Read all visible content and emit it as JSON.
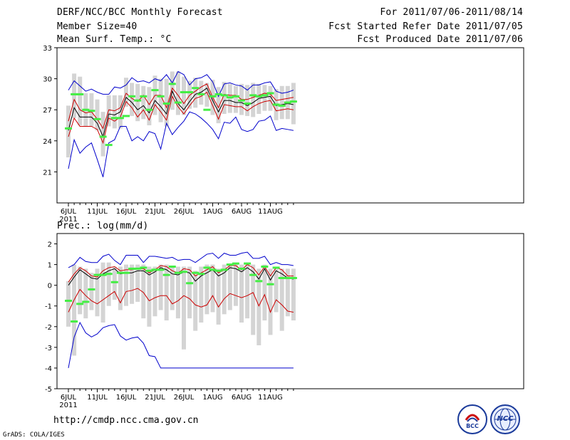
{
  "header": {
    "title": "DERF/NCC/BCC Monthly Forecast",
    "member_size": "Member Size=40",
    "variable": "Mean Surf. Temp.: °C",
    "period": "For 2011/07/06-2011/08/14",
    "started": "Fcst Started Refer Date 2011/07/05",
    "produced": "Fcst Produced Date 2011/07/06"
  },
  "footer": {
    "url": "http://cmdp.ncc.cma.gov.cn",
    "credit": "GrADS: COLA/IGES",
    "logo_bcc": "BCC",
    "logo_ncc": "NCC"
  },
  "colors": {
    "box": "#d4d4d4",
    "median": "#44ee44",
    "mean": "#000000",
    "band": "#cc0000",
    "range": "#0000cc"
  },
  "chart_data": [
    {
      "type": "box_ensemble",
      "title": "",
      "ylabel": "",
      "ylim": [
        18,
        33
      ],
      "yticks": [
        21,
        24,
        27,
        30,
        33
      ],
      "xticklabels": [
        "6JUL",
        "11JUL",
        "16JUL",
        "21JUL",
        "26JUL",
        "1AUG",
        "6AUG",
        "11AUG"
      ],
      "year_label": "2011",
      "days": 40,
      "series": [
        {
          "name": "max",
          "values": [
            28.9,
            29.8,
            29.3,
            28.8,
            29.0,
            28.7,
            28.5,
            28.5,
            29.2,
            29.1,
            29.4,
            30.1,
            29.7,
            29.8,
            29.6,
            30.0,
            29.8,
            30.4,
            29.6,
            30.7,
            30.4,
            29.4,
            30.0,
            30.1,
            30.4,
            29.7,
            28.3,
            29.5,
            29.6,
            29.4,
            29.3,
            28.9,
            29.4,
            29.4,
            29.6,
            29.7,
            28.8,
            28.6,
            28.7,
            28.9
          ]
        },
        {
          "name": "upper",
          "values": [
            25.9,
            28.0,
            27.0,
            26.7,
            26.8,
            26.1,
            25.2,
            27.0,
            26.9,
            27.2,
            28.6,
            28.1,
            27.8,
            28.4,
            27.5,
            28.4,
            28.4,
            27.2,
            29.1,
            28.4,
            27.6,
            28.4,
            28.8,
            29.2,
            29.5,
            28.2,
            27.2,
            28.5,
            28.4,
            28.4,
            28.0,
            28.0,
            28.2,
            28.4,
            28.6,
            28.5,
            27.9,
            28.0,
            28.1,
            28.2
          ]
        },
        {
          "name": "mean",
          "values": [
            25.0,
            27.2,
            26.3,
            26.3,
            26.3,
            25.7,
            24.4,
            26.6,
            26.5,
            26.8,
            28.2,
            27.7,
            27.0,
            27.4,
            26.7,
            27.9,
            27.3,
            26.6,
            28.8,
            27.6,
            27.0,
            27.8,
            28.5,
            28.7,
            29.1,
            27.9,
            26.8,
            27.9,
            27.9,
            27.7,
            27.7,
            27.4,
            27.7,
            28.1,
            28.2,
            28.3,
            27.4,
            27.5,
            27.6,
            27.5
          ]
        },
        {
          "name": "lower",
          "values": [
            24.4,
            26.2,
            25.4,
            25.4,
            25.4,
            25.1,
            23.8,
            26.2,
            25.9,
            26.3,
            27.8,
            27.2,
            26.3,
            27.0,
            26.0,
            27.5,
            26.8,
            26.0,
            28.3,
            27.3,
            26.6,
            27.4,
            28.1,
            28.3,
            28.7,
            27.4,
            26.1,
            27.5,
            27.4,
            27.3,
            27.3,
            26.9,
            27.3,
            27.6,
            27.8,
            27.9,
            26.9,
            27.0,
            27.1,
            27.0
          ]
        },
        {
          "name": "min",
          "values": [
            21.3,
            24.1,
            22.8,
            23.4,
            23.8,
            22.2,
            20.5,
            23.8,
            24.1,
            25.4,
            25.4,
            24.0,
            24.4,
            24.0,
            24.9,
            24.7,
            23.2,
            25.7,
            24.6,
            25.3,
            25.9,
            26.8,
            26.6,
            26.2,
            25.7,
            25.1,
            24.2,
            25.8,
            25.7,
            26.3,
            25.1,
            24.9,
            25.1,
            25.9,
            26.0,
            26.4,
            25.0,
            25.2,
            25.1,
            25.0
          ]
        },
        {
          "name": "median",
          "values": [
            25.2,
            28.5,
            28.5,
            27.0,
            26.9,
            26.1,
            24.4,
            23.6,
            26.2,
            26.2,
            26.4,
            28.3,
            27.9,
            28.3,
            27.0,
            28.9,
            28.3,
            27.6,
            29.5,
            27.7,
            28.7,
            28.7,
            29.1,
            28.5,
            27.0,
            28.3,
            28.5,
            28.4,
            28.2,
            28.3,
            27.9,
            27.6,
            28.4,
            28.3,
            28.4,
            28.6,
            27.5,
            27.4,
            27.7,
            27.8
          ]
        },
        {
          "name": "box_top",
          "values": [
            27.4,
            30.5,
            30.2,
            28.6,
            28.6,
            28.0,
            26.8,
            28.4,
            28.4,
            28.4,
            30.1,
            29.6,
            29.5,
            29.3,
            29.2,
            30.3,
            30.0,
            30.0,
            30.7,
            30.7,
            30.2,
            29.8,
            30.1,
            29.8,
            29.6,
            29.9,
            29.2,
            29.7,
            29.5,
            29.3,
            29.5,
            29.4,
            29.6,
            29.5,
            29.4,
            29.3,
            29.0,
            29.3,
            29.3,
            29.6
          ]
        },
        {
          "name": "box_bottom",
          "values": [
            22.4,
            26.2,
            25.5,
            25.4,
            25.4,
            25.0,
            22.5,
            25.4,
            25.2,
            25.2,
            27.3,
            26.4,
            25.9,
            26.1,
            25.5,
            26.5,
            25.8,
            25.4,
            27.0,
            26.5,
            26.5,
            27.1,
            27.2,
            27.5,
            27.3,
            26.5,
            25.7,
            26.6,
            26.7,
            26.7,
            26.5,
            26.4,
            26.3,
            26.6,
            26.9,
            26.9,
            26.0,
            26.1,
            26.1,
            25.6
          ]
        }
      ]
    },
    {
      "type": "box_ensemble",
      "title": "Prec.: log(mm/d)",
      "ylabel": "",
      "ylim": [
        -5,
        2.5
      ],
      "yticks": [
        -5,
        -4,
        -3,
        -2,
        -1,
        0,
        1,
        2
      ],
      "xticklabels": [
        "6JUL",
        "11JUL",
        "16JUL",
        "21JUL",
        "26JUL",
        "1AUG",
        "6AUG",
        "11AUG"
      ],
      "year_label": "2011",
      "days": 40,
      "series": [
        {
          "name": "max",
          "values": [
            0.85,
            1.0,
            1.35,
            1.15,
            1.1,
            1.1,
            1.4,
            1.5,
            1.2,
            1.0,
            1.45,
            1.45,
            1.45,
            1.1,
            1.4,
            1.4,
            1.35,
            1.3,
            1.35,
            1.2,
            1.25,
            1.25,
            1.1,
            1.3,
            1.5,
            1.55,
            1.3,
            1.55,
            1.45,
            1.45,
            1.55,
            1.6,
            1.3,
            1.3,
            1.4,
            1.0,
            1.1,
            1.0,
            1.0,
            0.95
          ]
        },
        {
          "name": "upper",
          "values": [
            0.15,
            0.55,
            0.85,
            0.7,
            0.45,
            0.4,
            0.7,
            0.85,
            0.9,
            0.7,
            0.75,
            0.75,
            0.8,
            0.8,
            0.6,
            0.75,
            0.95,
            0.9,
            0.7,
            0.6,
            0.8,
            0.75,
            0.45,
            0.6,
            0.75,
            0.9,
            0.6,
            0.75,
            0.95,
            0.95,
            0.75,
            1.0,
            0.85,
            0.5,
            0.9,
            0.45,
            0.85,
            0.75,
            0.45,
            0.45
          ]
        },
        {
          "name": "mean",
          "values": [
            0.0,
            0.4,
            0.75,
            0.55,
            0.35,
            0.3,
            0.55,
            0.7,
            0.8,
            0.55,
            0.6,
            0.6,
            0.7,
            0.7,
            0.5,
            0.65,
            0.85,
            0.75,
            0.55,
            0.5,
            0.65,
            0.6,
            0.2,
            0.45,
            0.6,
            0.75,
            0.45,
            0.6,
            0.85,
            0.8,
            0.65,
            0.85,
            0.65,
            0.3,
            0.8,
            0.25,
            0.7,
            0.55,
            0.35,
            0.3
          ]
        },
        {
          "name": "lower",
          "values": [
            -1.3,
            -0.7,
            -0.2,
            -0.5,
            -0.75,
            -0.9,
            -0.7,
            -0.5,
            -0.3,
            -0.85,
            -0.3,
            -0.25,
            -0.15,
            -0.35,
            -0.75,
            -0.6,
            -0.5,
            -0.5,
            -0.9,
            -0.75,
            -0.5,
            -0.65,
            -0.95,
            -1.05,
            -0.95,
            -0.5,
            -1.05,
            -0.65,
            -0.4,
            -0.5,
            -0.6,
            -0.5,
            -0.35,
            -1.0,
            -0.45,
            -1.3,
            -0.7,
            -0.95,
            -1.25,
            -1.3
          ]
        },
        {
          "name": "min",
          "values": [
            -4.0,
            -2.5,
            -1.8,
            -2.3,
            -2.5,
            -2.35,
            -2.05,
            -1.95,
            -1.9,
            -2.45,
            -2.65,
            -2.55,
            -2.5,
            -2.8,
            -3.4,
            -3.45,
            -4.0,
            -4.0,
            -4.0,
            -4.0,
            -4.0,
            -4.0,
            -4.0,
            -4.0,
            -4.0,
            -4.0,
            -4.0,
            -4.0,
            -4.0,
            -4.0,
            -4.0,
            -4.0,
            -4.0,
            -4.0,
            -4.0,
            -4.0,
            -4.0,
            -4.0,
            -4.0,
            -4.0
          ]
        },
        {
          "name": "median",
          "values": [
            -0.75,
            -1.75,
            -0.9,
            -0.8,
            -0.2,
            0.5,
            0.5,
            0.55,
            0.15,
            0.6,
            0.6,
            0.8,
            0.8,
            0.85,
            0.7,
            0.75,
            0.75,
            0.5,
            0.9,
            0.6,
            0.65,
            0.1,
            0.6,
            0.55,
            0.85,
            0.75,
            0.7,
            0.75,
            1.0,
            1.05,
            0.8,
            1.05,
            0.5,
            0.2,
            0.9,
            0.05,
            0.85,
            0.35,
            0.35,
            0.35
          ]
        },
        {
          "name": "box_top",
          "values": [
            0.2,
            1.0,
            0.9,
            0.8,
            0.6,
            0.8,
            1.1,
            1.1,
            0.9,
            0.9,
            1.0,
            1.0,
            1.0,
            1.0,
            0.9,
            0.9,
            1.0,
            1.0,
            0.9,
            0.9,
            0.9,
            0.9,
            0.7,
            0.9,
            1.0,
            1.0,
            0.8,
            1.0,
            1.0,
            1.1,
            1.0,
            1.1,
            1.0,
            0.8,
            1.0,
            0.8,
            0.9,
            0.8,
            0.8,
            0.8
          ]
        },
        {
          "name": "box_bottom",
          "values": [
            -2.0,
            -3.4,
            -1.4,
            -1.6,
            -1.2,
            -1.5,
            -1.8,
            -1.0,
            -0.7,
            -1.2,
            -1.0,
            -0.9,
            -0.8,
            -1.6,
            -2.0,
            -1.5,
            -1.2,
            -1.7,
            -1.2,
            -1.6,
            -3.1,
            -1.6,
            -2.2,
            -1.8,
            -1.4,
            -1.3,
            -1.9,
            -1.4,
            -1.2,
            -1.0,
            -1.8,
            -1.6,
            -2.4,
            -2.9,
            -1.7,
            -2.4,
            -1.3,
            -2.2,
            -1.5,
            -1.7
          ]
        }
      ]
    }
  ]
}
